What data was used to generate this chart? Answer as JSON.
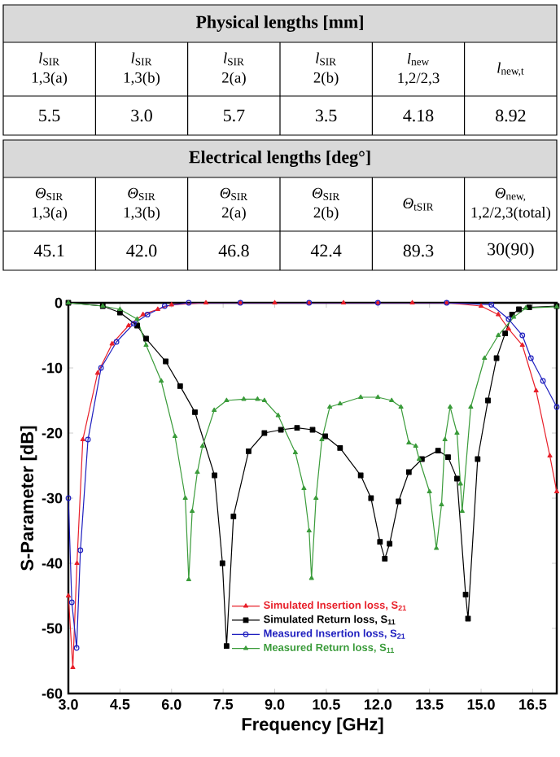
{
  "chart_data": [
    {
      "type": "other",
      "title": "Physical lengths [mm]",
      "categories": [
        "*l*$_{SIR}$ 1,3(a)",
        "*l*$_{SIR}$ 1,3(b)",
        "*l*$_{SIR}$ 2(a)",
        "*l*$_{SIR}$ 2(b)",
        "*l*$_{new}$ 1,2/2,3",
        "*l*$_{new,t}$"
      ],
      "value_labels": [
        "5.5",
        "3.0",
        "5.7",
        "3.5",
        "4.18",
        "8.92"
      ]
    },
    {
      "type": "other",
      "title": "Electrical lengths [deg°]",
      "categories": [
        "*Θ*$_{SIR}$ 1,3(a)",
        "*Θ*$_{SIR}$ 1,3(b)",
        "*Θ*$_{SIR}$ 2(a)",
        "*Θ*$_{SIR}$ 2(b)",
        "*Θ*$_{tSIR}$",
        "*Θ*$_{new,}$ 1,2/2,3(total)"
      ],
      "value_labels": [
        "45.1",
        "42.0",
        "46.8",
        "42.4",
        "89.3",
        "30(90)"
      ]
    },
    {
      "type": "line",
      "xlabel": "Frequency [GHz]",
      "ylabel": "S-Parameter [dB]",
      "xlim": [
        3,
        17.2
      ],
      "ylim": [
        -60,
        0
      ],
      "xticks": [
        {
          "value": 3,
          "label": "3.0"
        },
        4.5,
        {
          "value": 6,
          "label": "6.0"
        },
        7.5,
        {
          "value": 9,
          "label": "9.0"
        },
        10.5,
        {
          "value": 12,
          "label": "12.0"
        },
        13.5,
        {
          "value": 15,
          "label": "15.0"
        },
        16.5
      ],
      "yticks": [
        -60,
        -50,
        -40,
        -30,
        -20,
        -10,
        0
      ],
      "grid": false,
      "legend": "bottom right",
      "series": [
        {
          "name": "Simulated Insertion loss, S$_{21}$",
          "color": "#e8202a",
          "marker": "triangle",
          "x": [
            3.0,
            3.13,
            3.25,
            3.42,
            3.85,
            4.27,
            4.75,
            5.17,
            5.6,
            6.0,
            7,
            8,
            9,
            10,
            11,
            12,
            13,
            14,
            15,
            15.5,
            15.8,
            16.2,
            16.6,
            17.0,
            17.2
          ],
          "values": [
            -45,
            -56,
            -40,
            -21,
            -10.8,
            -6.3,
            -3.5,
            -1.8,
            -1,
            -0.3,
            0,
            0,
            0,
            0,
            0,
            0,
            0,
            0,
            -0.5,
            -1.8,
            -4,
            -6.5,
            -13.5,
            -23.5,
            -29
          ]
        },
        {
          "name": "Simulated Return loss, S$_{11}$",
          "color": "#000000",
          "marker": "square",
          "x": [
            3.0,
            4.0,
            4.5,
            5.0,
            5.26,
            5.83,
            6.25,
            6.68,
            7.25,
            7.48,
            7.6,
            7.8,
            8.24,
            8.7,
            9.18,
            9.65,
            10.1,
            10.47,
            10.9,
            11.5,
            11.8,
            12.06,
            12.2,
            12.34,
            12.6,
            12.9,
            13.28,
            13.75,
            14.04,
            14.3,
            14.55,
            14.62,
            14.9,
            15.2,
            15.45,
            15.7,
            15.9,
            16.1,
            16.4,
            17.2
          ],
          "values": [
            0,
            -0.5,
            -1.5,
            -3.5,
            -5.5,
            -9,
            -12.8,
            -16.8,
            -26.5,
            -40,
            -52.7,
            -32.8,
            -22.8,
            -20,
            -19.5,
            -19.2,
            -19.5,
            -20.5,
            -22.3,
            -26.5,
            -30,
            -36.7,
            -39.3,
            -37,
            -30.5,
            -26,
            -24,
            -22.7,
            -23.7,
            -27,
            -44.8,
            -48.5,
            -24,
            -15,
            -8.5,
            -4.7,
            -1.8,
            -1,
            -0.7,
            -0.5
          ]
        },
        {
          "name": "Measured Insertion loss, S$_{21}$",
          "color": "#1f1fbf",
          "marker": "circle",
          "x": [
            3.0,
            3.1,
            3.24,
            3.35,
            3.57,
            3.95,
            4.4,
            4.9,
            5.3,
            5.8,
            6.5,
            8,
            10,
            12,
            14,
            15.3,
            15.8,
            16.2,
            16.45,
            16.8,
            17.2
          ],
          "values": [
            -30,
            -46,
            -53,
            -38,
            -21,
            -10,
            -6,
            -3.2,
            -1.8,
            -0.5,
            0,
            0,
            0,
            0,
            0,
            -0.3,
            -2.5,
            -5,
            -8.5,
            -12,
            -16
          ]
        },
        {
          "name": "Measured Return loss, S$_{11}$",
          "color": "#3a9b3a",
          "marker": "triangle",
          "x": [
            3.0,
            4.0,
            4.5,
            5.0,
            5.26,
            5.7,
            6.1,
            6.4,
            6.5,
            6.6,
            6.75,
            6.9,
            7.24,
            7.6,
            8.1,
            8.5,
            8.7,
            9.1,
            9.6,
            9.85,
            10.0,
            10.07,
            10.2,
            10.37,
            10.6,
            10.9,
            11.5,
            12.0,
            12.4,
            12.67,
            12.9,
            13.1,
            13.2,
            13.5,
            13.7,
            13.85,
            13.95,
            14.1,
            14.3,
            14.4,
            14.45,
            14.7,
            15.1,
            15.5,
            15.95,
            16.3,
            17.2
          ],
          "values": [
            0,
            -0.5,
            -1,
            -2.5,
            -6.5,
            -12,
            -20.5,
            -30,
            -42.5,
            -32,
            -26,
            -22,
            -16.5,
            -15,
            -14.8,
            -14.8,
            -15,
            -17.3,
            -23,
            -28.5,
            -35,
            -42.3,
            -30,
            -21,
            -16,
            -15.5,
            -14.5,
            -14.5,
            -15,
            -16,
            -21.5,
            -22,
            -24,
            -29,
            -37.7,
            -31,
            -21,
            -16,
            -20,
            -27.8,
            -32,
            -16,
            -8.5,
            -5,
            -2.2,
            -0.8,
            -0.6
          ]
        }
      ]
    }
  ]
}
